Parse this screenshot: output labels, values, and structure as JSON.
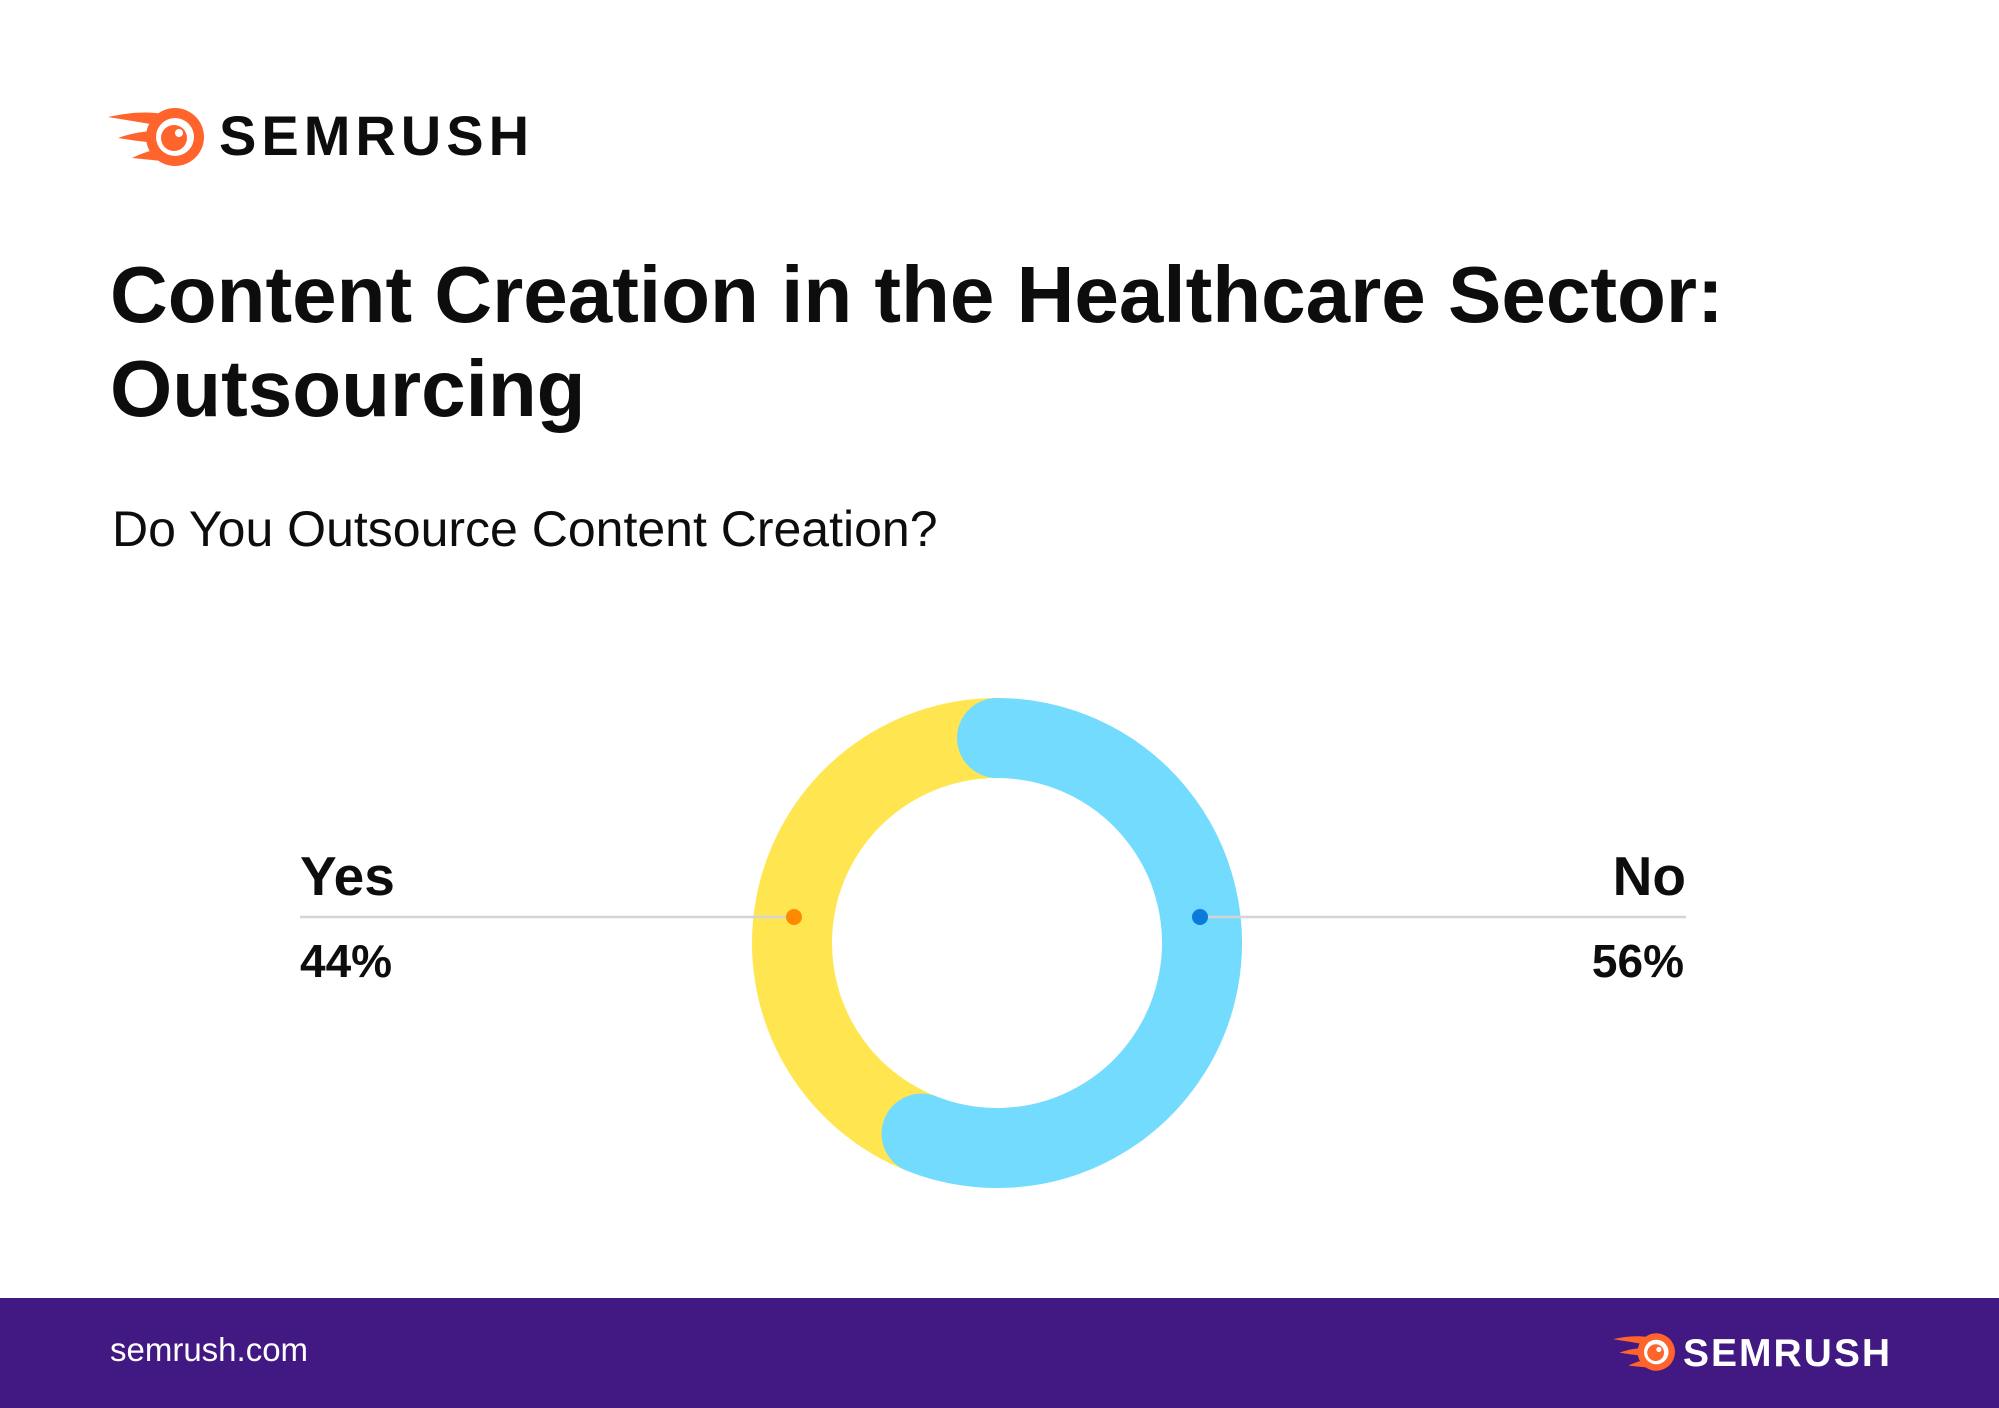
{
  "brand": {
    "logo_text": "SEMRUSH",
    "logo_icon": "semrush-logo-icon",
    "accent_color": "#FF642D"
  },
  "title": {
    "line1": "Content Creation in the Healthcare Sector:",
    "line2": "Outsourcing"
  },
  "chart_data": {
    "type": "pie",
    "donut": true,
    "title": "Do You Outsource Content Creation?",
    "slices": [
      {
        "label": "Yes",
        "value": 44,
        "value_text": "44%",
        "color": "#FFE650",
        "marker_color": "#FF8A00"
      },
      {
        "label": "No",
        "value": 56,
        "value_text": "56%",
        "color": "#73DBFD",
        "marker_color": "#0A7ADB"
      }
    ]
  },
  "footer": {
    "site": "semrush.com",
    "logo_text": "SEMRUSH",
    "logo_icon": "semrush-logo-icon",
    "background_color": "#421983"
  }
}
